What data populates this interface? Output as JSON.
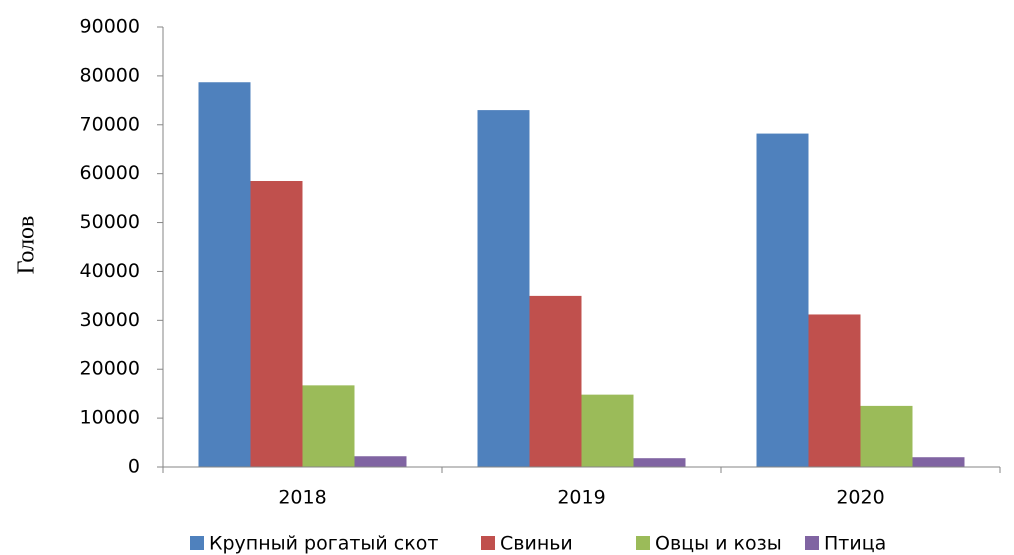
{
  "chart_data": {
    "type": "bar",
    "ylabel": "Голов",
    "categories": [
      "2018",
      "2019",
      "2020"
    ],
    "series": [
      {
        "name": "Крупный рогатый скот",
        "color": "#4f81bd",
        "values": [
          78700,
          73000,
          68200
        ]
      },
      {
        "name": "Свиньи",
        "color": "#c0504d",
        "values": [
          58500,
          35000,
          31200
        ]
      },
      {
        "name": "Овцы и козы",
        "color": "#9bbb59",
        "values": [
          16700,
          14800,
          12500
        ]
      },
      {
        "name": "Птица",
        "color": "#8064a2",
        "values": [
          2200,
          1800,
          2000
        ]
      }
    ],
    "ylim": [
      0,
      90000
    ],
    "yticks": [
      0,
      10000,
      20000,
      30000,
      40000,
      50000,
      60000,
      70000,
      80000,
      90000
    ],
    "grid": false,
    "legend": "bottom"
  }
}
